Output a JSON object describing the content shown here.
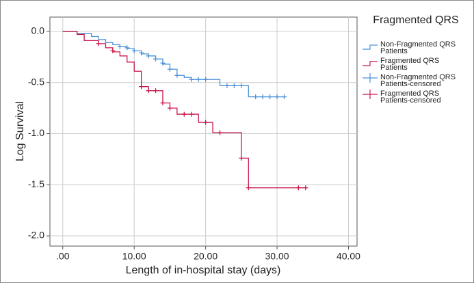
{
  "chart_data": {
    "type": "line",
    "legend_title": "Fragmented QRS",
    "x_label": "Length of in-hospital stay (days)",
    "y_label": "Log Survival",
    "xlim": [
      -1.8,
      41.2
    ],
    "ylim": [
      -2.1,
      0.14
    ],
    "xticks": [
      {
        "value": 0,
        "label": ".00"
      },
      {
        "value": 10,
        "label": "10.00"
      },
      {
        "value": 20,
        "label": "20.00"
      },
      {
        "value": 30,
        "label": "30.00"
      },
      {
        "value": 40,
        "label": "40.00"
      }
    ],
    "yticks": [
      {
        "value": 0,
        "label": "0.0"
      },
      -0.5,
      {
        "value": -1,
        "label": "-1.0"
      },
      -1.5,
      {
        "value": -2,
        "label": "-2.0"
      }
    ],
    "grid": true,
    "legend": "right",
    "series": [
      {
        "name": "Non-Fragmented QRS Patients",
        "color": "#4a90d9",
        "style": "step",
        "x": [
          0,
          2,
          4,
          5,
          6,
          7,
          8,
          9,
          10,
          11,
          12,
          13,
          14,
          15,
          16,
          17,
          18,
          22,
          26,
          31
        ],
        "values": [
          0,
          -0.02,
          -0.05,
          -0.08,
          -0.11,
          -0.13,
          -0.15,
          -0.17,
          -0.19,
          -0.22,
          -0.24,
          -0.27,
          -0.32,
          -0.37,
          -0.43,
          -0.45,
          -0.47,
          -0.53,
          -0.64,
          -0.64
        ]
      },
      {
        "name": "Fragmented QRS Patients",
        "color": "#c8174a",
        "style": "step",
        "x": [
          0,
          2,
          3,
          5,
          6,
          7,
          8,
          9,
          10,
          11,
          12,
          14,
          15,
          16,
          19,
          21,
          25,
          26,
          34
        ],
        "values": [
          0,
          -0.03,
          -0.09,
          -0.12,
          -0.16,
          -0.2,
          -0.24,
          -0.3,
          -0.39,
          -0.54,
          -0.58,
          -0.7,
          -0.75,
          -0.81,
          -0.89,
          -0.99,
          -1.24,
          -1.53,
          -1.53
        ]
      },
      {
        "name": "Non-Fragmented QRS Patients-censored",
        "color": "#4a90d9",
        "style": "censor",
        "x": [
          8,
          9,
          10,
          11,
          12,
          13,
          14,
          15,
          16,
          18,
          19,
          20,
          23,
          24,
          25,
          27,
          28,
          29,
          30,
          31
        ],
        "values": [
          -0.15,
          -0.16,
          -0.19,
          -0.21,
          -0.24,
          -0.27,
          -0.31,
          -0.37,
          -0.43,
          -0.47,
          -0.47,
          -0.47,
          -0.53,
          -0.53,
          -0.53,
          -0.64,
          -0.64,
          -0.64,
          -0.64,
          -0.64
        ]
      },
      {
        "name": "Fragmented QRS Patients-censored",
        "color": "#c8174a",
        "style": "censor",
        "x": [
          5,
          7,
          11,
          12,
          13,
          14,
          15,
          17,
          18,
          20,
          22,
          25,
          26,
          33,
          34
        ],
        "values": [
          -0.12,
          -0.19,
          -0.54,
          -0.58,
          -0.58,
          -0.7,
          -0.75,
          -0.81,
          -0.81,
          -0.89,
          -0.99,
          -1.24,
          -1.53,
          -1.53,
          -1.53
        ]
      }
    ]
  }
}
